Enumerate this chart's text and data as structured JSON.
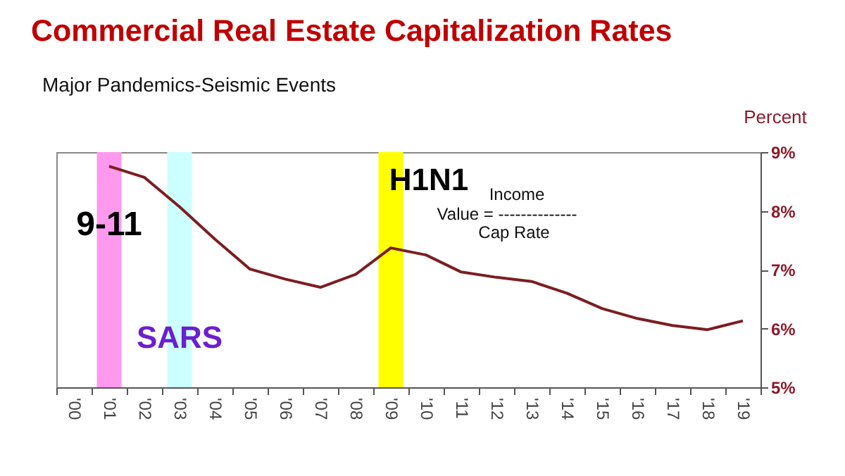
{
  "chart_data": {
    "type": "line",
    "title": "Commercial Real Estate Capitalization Rates",
    "subtitle": "Major Pandemics-Seismic Events",
    "ylabel": "Percent",
    "categories": [
      "'00",
      "'01",
      "'02",
      "'03",
      "'04",
      "'05",
      "'06",
      "'07",
      "'08",
      "'09",
      "'10",
      "'11",
      "'12",
      "'13",
      "'14",
      "'15",
      "'16",
      "'17",
      "'18",
      "'19"
    ],
    "series": [
      {
        "color": "#7b1e22",
        "values": [
          null,
          8.76,
          8.57,
          8.07,
          7.52,
          7.01,
          6.84,
          6.7,
          6.92,
          7.37,
          7.25,
          6.96,
          6.87,
          6.8,
          6.6,
          6.34,
          6.17,
          6.05,
          5.98,
          6.13
        ]
      }
    ],
    "ylim": [
      5,
      9
    ],
    "yticks": [
      {
        "value": 5,
        "label": "5%"
      },
      {
        "value": 6,
        "label": "6%"
      },
      {
        "value": 7,
        "label": "7%"
      },
      {
        "value": 8,
        "label": "8%"
      },
      {
        "value": 9,
        "label": "9%"
      }
    ],
    "bands": [
      {
        "axis": "x",
        "from": "'01",
        "to": "'01",
        "label": "9-11",
        "color": "#ff99ee"
      },
      {
        "axis": "x",
        "from": "'03",
        "to": "'03",
        "label": "SARS",
        "color": "#ccffff"
      },
      {
        "axis": "x",
        "from": "'09",
        "to": "'09",
        "label": "H1N1",
        "color": "#ffff00"
      }
    ],
    "annotations": [
      "Income",
      "Value = --------------",
      "Cap Rate"
    ],
    "grid": false,
    "marker": "none",
    "line_style": "solid"
  }
}
